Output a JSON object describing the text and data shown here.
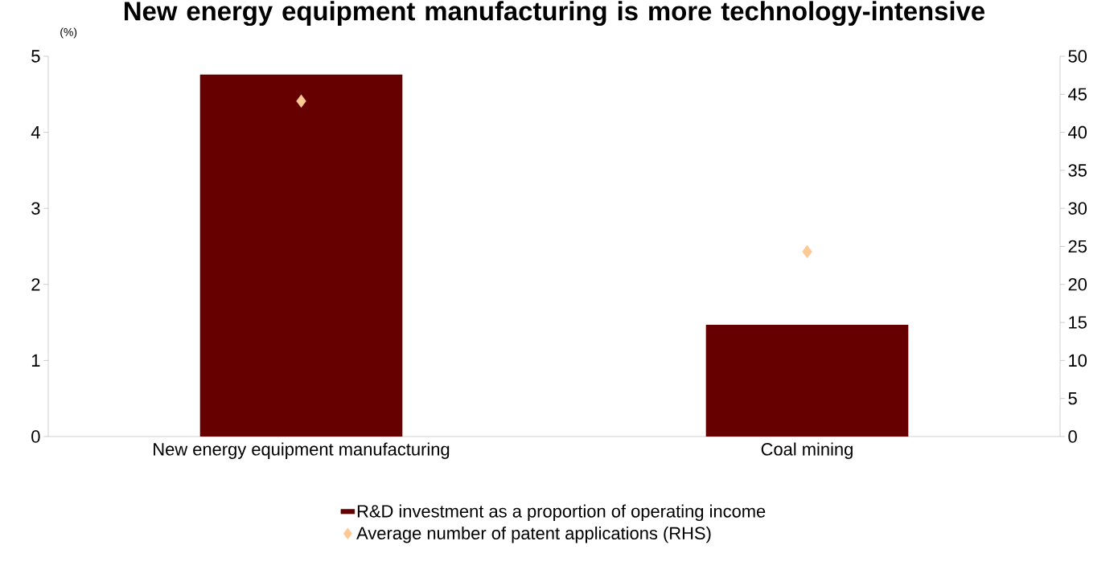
{
  "chart_data": {
    "type": "bar",
    "title": "New energy equipment manufacturing is more technology-intensive",
    "ylabel": "(%)",
    "categories": [
      "New energy equipment manufacturing",
      "Coal mining"
    ],
    "series": [
      {
        "name": "R&D investment as a proportion of operating income",
        "color": "#660000",
        "values": [
          4.76,
          1.47
        ]
      },
      {
        "name": "Average number of patent applications (RHS)",
        "type": "scatter",
        "marker": "diamond",
        "axis": "y2",
        "color": "#fcc894",
        "values": [
          44.1,
          24.3
        ]
      }
    ],
    "ylim": [
      0,
      5
    ],
    "yticks": [
      0,
      1,
      2,
      3,
      4,
      5
    ],
    "y2lim": [
      0,
      50
    ],
    "y2ticks": [
      0,
      5,
      10,
      15,
      20,
      25,
      30,
      35,
      40,
      45,
      50
    ],
    "legend": "bottom",
    "grid": false
  }
}
